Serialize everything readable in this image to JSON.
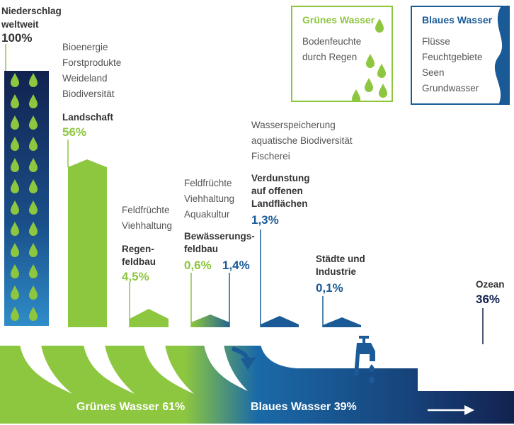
{
  "precipitation": {
    "line1": "Niederschlag",
    "line2": "weltweit",
    "value": "100%"
  },
  "landscape": {
    "items": [
      "Bioenergie",
      "Forstprodukte",
      "Weideland",
      "Biodiversität"
    ],
    "label": "Landschaft",
    "value": "56%"
  },
  "rainfed": {
    "items": [
      "Feldfrüchte",
      "Viehhaltung"
    ],
    "label1": "Regen-",
    "label2": "feldbau",
    "value": "4,5%"
  },
  "irrigated": {
    "items": [
      "Feldfrüchte",
      "Viehhaltung",
      "Aquakultur"
    ],
    "label1": "Bewässerungs-",
    "label2": "feldbau",
    "value_green": "0,6%",
    "value_blue": "1,4%"
  },
  "evaporation": {
    "items": [
      "Wasserspeicherung",
      "aquatische Biodiversität",
      "Fischerei"
    ],
    "label1": "Verdunstung",
    "label2": "auf offenen",
    "label3": "Landflächen",
    "value": "1,3%"
  },
  "cities": {
    "label1": "Städte und",
    "label2": "Industrie",
    "value": "0,1%"
  },
  "ocean": {
    "label": "Ozean",
    "value": "36%"
  },
  "legend_green": {
    "title": "Grünes Wasser",
    "items": [
      "Bodenfeuchte",
      "durch Regen"
    ],
    "color": "#8dc63f",
    "icon": "raindrop-icon"
  },
  "legend_blue": {
    "title": "Blaues Wasser",
    "items": [
      "Flüsse",
      "Feuchtgebiete",
      "Seen",
      "Grundwasser"
    ],
    "color": "#1a5a96",
    "icon": "wave-icon"
  },
  "bands": {
    "green": "Grünes Wasser 61%",
    "blue": "Blaues Wasser 39%"
  },
  "colors": {
    "green": "#8dc63f",
    "blue": "#1a5a96",
    "navy": "#12224f"
  },
  "icons": [
    "tap-icon",
    "arrow-right-icon",
    "curved-arrow-icon"
  ]
}
